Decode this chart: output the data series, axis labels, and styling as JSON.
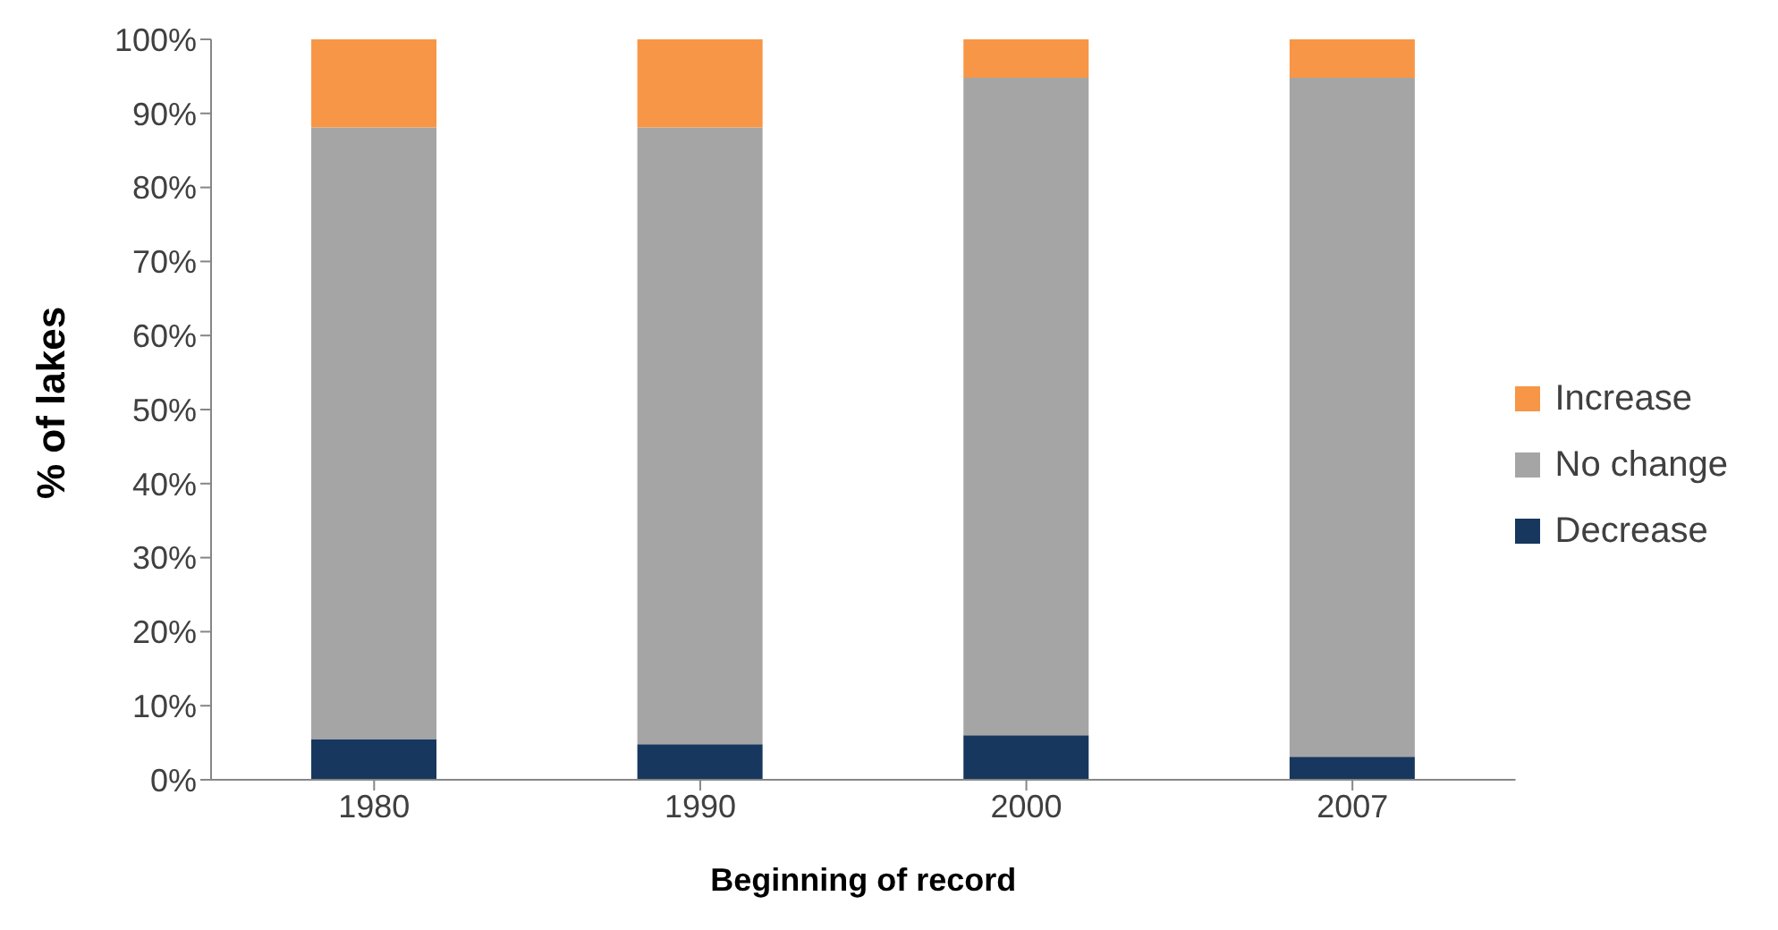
{
  "chart_data": {
    "type": "bar",
    "stacked": true,
    "xlabel": "Beginning of record",
    "ylabel": "% of lakes",
    "categories": [
      "1980",
      "1990",
      "2000",
      "2007"
    ],
    "series": [
      {
        "name": "Decrease",
        "color": "#17375e",
        "values": [
          5.5,
          4.8,
          6.0,
          3.1
        ]
      },
      {
        "name": "No change",
        "color": "#a5a5a5",
        "values": [
          82.6,
          83.3,
          88.8,
          91.7
        ]
      },
      {
        "name": "Increase",
        "color": "#f79646",
        "values": [
          11.9,
          11.9,
          5.2,
          5.2
        ]
      }
    ],
    "ylim": [
      0,
      100
    ],
    "yticks": [
      {
        "value": 0,
        "label": "0%"
      },
      {
        "value": 10,
        "label": "10%"
      },
      {
        "value": 20,
        "label": "20%"
      },
      {
        "value": 30,
        "label": "30%"
      },
      {
        "value": 40,
        "label": "40%"
      },
      {
        "value": 50,
        "label": "50%"
      },
      {
        "value": 60,
        "label": "60%"
      },
      {
        "value": 70,
        "label": "70%"
      },
      {
        "value": 80,
        "label": "80%"
      },
      {
        "value": 90,
        "label": "90%"
      },
      {
        "value": 100,
        "label": "100%"
      }
    ],
    "grid": false,
    "legend": "right"
  }
}
